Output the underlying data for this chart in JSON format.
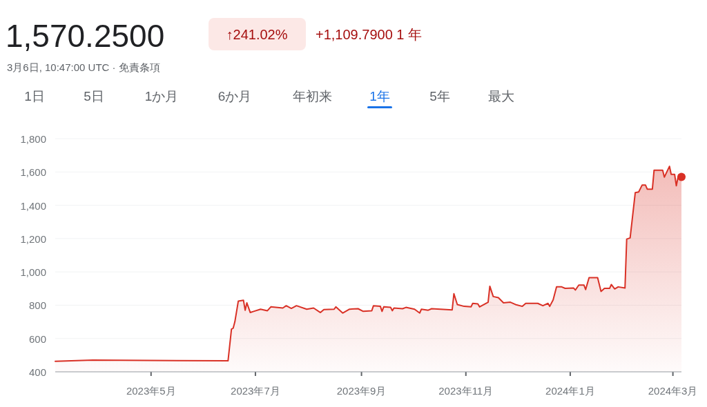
{
  "chart_data": {
    "type": "area",
    "title": "1,570.2500",
    "subtitle": "3月6日, 10:47:00 UTC · 免責条項",
    "annotations": [
      "↑241.02%",
      "+1,109.7900 1 年",
      "1日",
      "5日",
      "1か月",
      "6か月",
      "年初来",
      "1年",
      "5年",
      "最大"
    ],
    "xlim": [
      "2023-03-06",
      "2024-03-06"
    ],
    "xticks": [
      {
        "value": "2023-05-01",
        "label": "2023年5月"
      },
      {
        "value": "2023-07-01",
        "label": "2023年7月"
      },
      {
        "value": "2023-09-01",
        "label": "2023年9月"
      },
      {
        "value": "2023-11-01",
        "label": "2023年11月"
      },
      {
        "value": "2024-01-01",
        "label": "2024年1月"
      },
      {
        "value": "2024-03-01",
        "label": "2024年3月"
      }
    ],
    "ylim": [
      400,
      1800
    ],
    "yticks": [
      400,
      600,
      800,
      {
        "value": 1000,
        "label": "1,000"
      },
      {
        "value": 1200,
        "label": "1,200"
      },
      {
        "value": 1400,
        "label": "1,400"
      },
      {
        "value": 1600,
        "label": "1,600"
      },
      {
        "value": 1800,
        "label": "1,800"
      }
    ],
    "grid": "y",
    "series": [
      {
        "color": "#d93025",
        "x": [
          "2023-03-06",
          "2023-03-28",
          "2023-06-15",
          "2023-06-17",
          "2023-06-18",
          "2023-06-19",
          "2023-06-21",
          "2023-06-24",
          "2023-06-25",
          "2023-06-26",
          "2023-06-28",
          "2023-06-30",
          "2023-07-04",
          "2023-07-08",
          "2023-07-10",
          "2023-07-17",
          "2023-07-19",
          "2023-07-22",
          "2023-07-25",
          "2023-07-31",
          "2023-08-04",
          "2023-08-08",
          "2023-08-10",
          "2023-08-16",
          "2023-08-17",
          "2023-08-21",
          "2023-08-25",
          "2023-08-30",
          "2023-09-02",
          "2023-09-07",
          "2023-09-08",
          "2023-09-12",
          "2023-09-13",
          "2023-09-14",
          "2023-09-18",
          "2023-09-19",
          "2023-09-20",
          "2023-09-25",
          "2023-09-27",
          "2023-10-02",
          "2023-10-05",
          "2023-10-06",
          "2023-10-10",
          "2023-10-12",
          "2023-10-24",
          "2023-10-25",
          "2023-10-27",
          "2023-10-31",
          "2023-11-04",
          "2023-11-05",
          "2023-11-08",
          "2023-11-09",
          "2023-11-14",
          "2023-11-15",
          "2023-11-17",
          "2023-11-20",
          "2023-11-23",
          "2023-11-27",
          "2023-11-30",
          "2023-12-04",
          "2023-12-06",
          "2023-12-13",
          "2023-12-16",
          "2023-12-19",
          "2023-12-20",
          "2023-12-22",
          "2023-12-24",
          "2023-12-27",
          "2023-12-29",
          "2024-01-03",
          "2024-01-04",
          "2024-01-06",
          "2024-01-09",
          "2024-01-10",
          "2024-01-12",
          "2024-01-17",
          "2024-01-19",
          "2024-01-21",
          "2024-01-24",
          "2024-01-25",
          "2024-01-27",
          "2024-01-29",
          "2024-02-02",
          "2024-02-03",
          "2024-02-05",
          "2024-02-08",
          "2024-02-10",
          "2024-02-12",
          "2024-02-14",
          "2024-02-15",
          "2024-02-18",
          "2024-02-19",
          "2024-02-24",
          "2024-02-25",
          "2024-02-28",
          "2024-02-29",
          "2024-03-02",
          "2024-03-03",
          "2024-03-04",
          "2024-03-06"
        ],
        "values": [
          463,
          470,
          466,
          656,
          662,
          701,
          825,
          830,
          770,
          814,
          756,
          763,
          776,
          767,
          790,
          783,
          797,
          781,
          797,
          776,
          783,
          756,
          774,
          776,
          790,
          753,
          776,
          779,
          763,
          767,
          797,
          794,
          763,
          790,
          787,
          767,
          783,
          779,
          787,
          776,
          753,
          776,
          770,
          779,
          772,
          869,
          804,
          793,
          790,
          811,
          808,
          790,
          818,
          914,
          852,
          845,
          814,
          818,
          804,
          793,
          811,
          811,
          797,
          811,
          793,
          832,
          910,
          910,
          901,
          903,
          891,
          921,
          921,
          894,
          965,
          965,
          883,
          901,
          901,
          924,
          898,
          910,
          903,
          1197,
          1204,
          1476,
          1480,
          1521,
          1521,
          1497,
          1497,
          1611,
          1611,
          1569,
          1634,
          1586,
          1586,
          1517,
          1569,
          1570.25
        ]
      }
    ]
  }
}
